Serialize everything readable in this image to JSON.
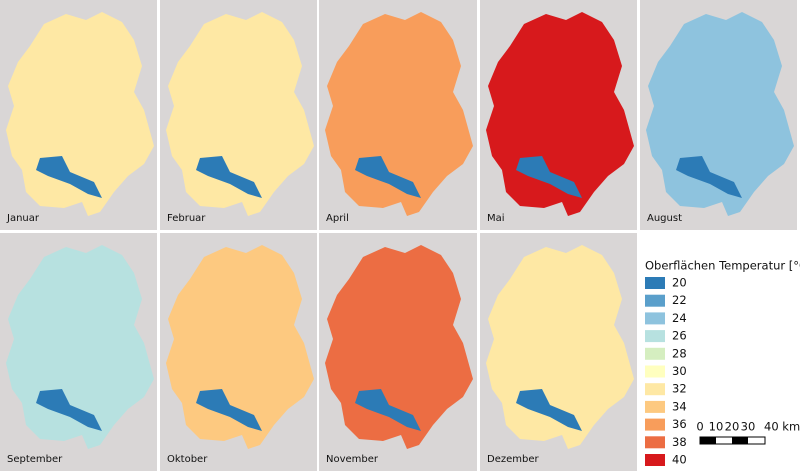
{
  "panels": [
    {
      "label": "Januar",
      "color": "#fee8a4"
    },
    {
      "label": "Februar",
      "color": "#fee8a4"
    },
    {
      "label": "April",
      "color": "#f89d5b"
    },
    {
      "label": "Mai",
      "color": "#d7191c"
    },
    {
      "label": "August",
      "color": "#8ec3de"
    },
    {
      "label": "September",
      "color": "#b7e1e0"
    },
    {
      "label": "Oktober",
      "color": "#fdc980"
    },
    {
      "label": "November",
      "color": "#ec6d43"
    },
    {
      "label": "Dezember",
      "color": "#fee8a4"
    }
  ],
  "legend": {
    "title": "Oberflächen Temperatur [°C]",
    "items": [
      {
        "label": "20",
        "color": "#2c7bb6"
      },
      {
        "label": "22",
        "color": "#5a9fcb"
      },
      {
        "label": "24",
        "color": "#8ec3de"
      },
      {
        "label": "26",
        "color": "#b7e1e0"
      },
      {
        "label": "28",
        "color": "#d5eec0"
      },
      {
        "label": "30",
        "color": "#ffffbf"
      },
      {
        "label": "32",
        "color": "#fee8a4"
      },
      {
        "label": "34",
        "color": "#fdc980"
      },
      {
        "label": "36",
        "color": "#f89d5b"
      },
      {
        "label": "38",
        "color": "#ec6d43"
      },
      {
        "label": "40",
        "color": "#d7191c"
      }
    ]
  },
  "scale_bar": {
    "labels": [
      "0",
      "10",
      "20",
      "30",
      "40 km"
    ]
  }
}
